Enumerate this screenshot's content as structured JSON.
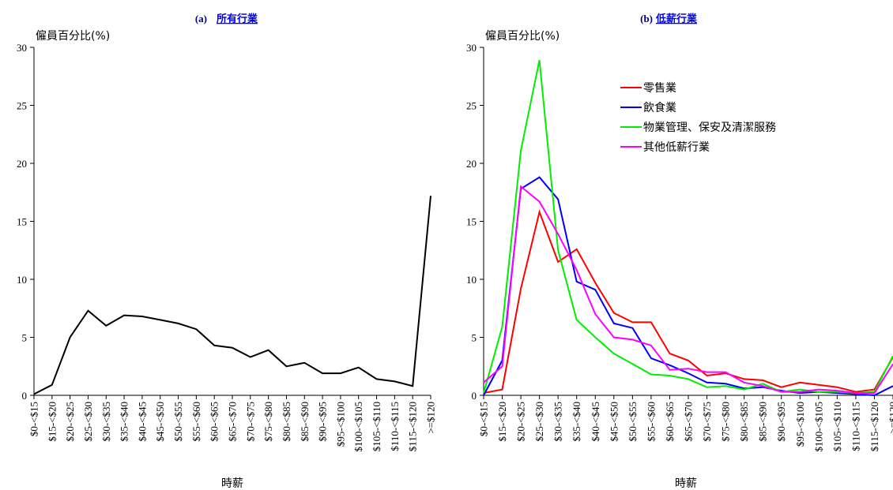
{
  "chart_data": [
    {
      "type": "line",
      "title_prefix": "(a)",
      "title": "所有行業",
      "ylabel": "僱員百分比(%)",
      "xlabel": "時薪",
      "ylim": [
        0,
        30
      ],
      "yticks": [
        "0",
        "5",
        "10",
        "15",
        "20",
        "25",
        "30"
      ],
      "categories": [
        "$0-<$15",
        "$15-<$20",
        "$20-<$25",
        "$25-<$30",
        "$30-<$35",
        "$35-<$40",
        "$40-<$45",
        "$45-<$50",
        "$50-<$55",
        "$55-<$60",
        "$60-<$65",
        "$65-<$70",
        "$70-<$75",
        "$75-<$80",
        "$80-<$85",
        "$85-<$90",
        "$90-<$95",
        "$95-<$100",
        "$100-<$105",
        "$105-<$110",
        "$110-<$115",
        "$115-<$120",
        ">=$120"
      ],
      "series": [
        {
          "color": "#000000",
          "values": [
            0.1,
            0.9,
            5.0,
            7.3,
            6.0,
            6.9,
            6.8,
            6.5,
            6.2,
            5.7,
            4.3,
            4.1,
            3.3,
            3.9,
            2.5,
            2.8,
            1.9,
            1.9,
            2.4,
            1.4,
            1.2,
            0.8,
            17.2
          ]
        }
      ]
    },
    {
      "type": "line",
      "title_prefix": "(b)",
      "title": "低薪行業",
      "ylabel": "僱員百分比(%)",
      "xlabel": "時薪",
      "ylim": [
        0,
        30
      ],
      "yticks": [
        "0",
        "5",
        "10",
        "15",
        "20",
        "25",
        "30"
      ],
      "categories": [
        "$0-<$15",
        "$15-<$20",
        "$20-<$25",
        "$25-<$30",
        "$30-<$35",
        "$35-<$40",
        "$40-<$45",
        "$45-<$50",
        "$50-<$55",
        "$55-<$60",
        "$60-<$65",
        "$65-<$70",
        "$70-<$75",
        "$75-<$80",
        "$80-<$85",
        "$85-<$90",
        "$90-<$95",
        "$95-<$100",
        "$100-<$105",
        "$105-<$110",
        "$110-<$115",
        "$115-<$120",
        ">=$120"
      ],
      "legend_position": "top-right",
      "series": [
        {
          "name": "零售業",
          "color": "#ff0000",
          "values": [
            0.2,
            0.5,
            9.2,
            15.8,
            11.5,
            12.6,
            9.7,
            7.1,
            6.3,
            6.3,
            3.6,
            3.0,
            1.7,
            1.9,
            1.4,
            1.3,
            0.7,
            1.1,
            0.9,
            0.7,
            0.3,
            0.5,
            3.3
          ]
        },
        {
          "name": "飲食業",
          "color": "#0000ff",
          "values": [
            0.0,
            3.0,
            17.8,
            18.8,
            16.9,
            9.8,
            9.1,
            6.2,
            5.8,
            3.2,
            2.6,
            1.9,
            1.1,
            1.0,
            0.6,
            0.7,
            0.4,
            0.2,
            0.3,
            0.2,
            0.1,
            0.0,
            0.8
          ]
        },
        {
          "name": "物業管理、保安及清潔服務",
          "color": "#00ee00",
          "values": [
            0.2,
            5.9,
            21.1,
            28.9,
            12.5,
            6.5,
            5.0,
            3.6,
            2.7,
            1.8,
            1.7,
            1.4,
            0.7,
            0.8,
            0.5,
            1.0,
            0.3,
            0.5,
            0.3,
            0.3,
            0.2,
            0.3,
            3.4
          ]
        },
        {
          "name": "其他低薪行業",
          "color": "#ff00ff",
          "values": [
            1.1,
            2.5,
            18.0,
            16.7,
            13.9,
            10.8,
            7.0,
            5.0,
            4.8,
            4.3,
            2.2,
            2.3,
            2.0,
            2.0,
            1.1,
            0.8,
            0.3,
            0.3,
            0.5,
            0.4,
            0.2,
            0.2,
            2.7
          ]
        }
      ]
    }
  ]
}
